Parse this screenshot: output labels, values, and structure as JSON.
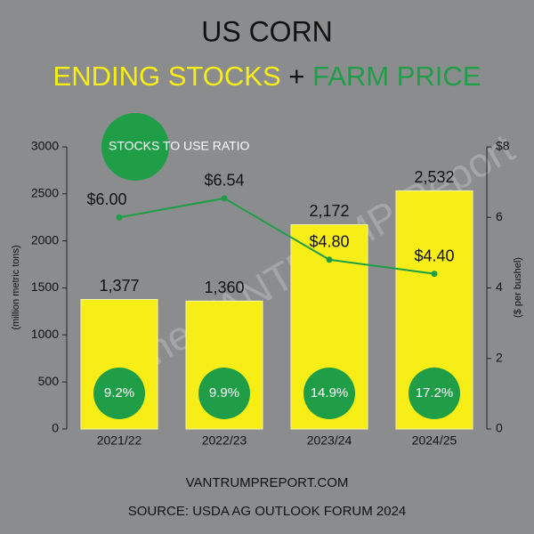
{
  "chart_data": {
    "type": "bar",
    "title": "US CORN",
    "subtitle_separator": "+",
    "categories": [
      "2021/22",
      "2022/23",
      "2023/24",
      "2024/25"
    ],
    "series": [
      {
        "name": "ENDING STOCKS",
        "type": "bar",
        "color": "#f6ee16",
        "values": [
          1377,
          1360,
          2172,
          2532
        ],
        "value_labels": [
          "1,377",
          "1,360",
          "2,172",
          "2,532"
        ]
      },
      {
        "name": "FARM PRICE",
        "type": "line",
        "axis": "y2",
        "color": "#1f9e47",
        "values": [
          6.0,
          6.54,
          4.8,
          4.4
        ],
        "value_labels": [
          "$6.00",
          "$6.54",
          "$4.80",
          "$4.40"
        ]
      },
      {
        "name": "STOCKS TO USE RATIO",
        "type": "badge",
        "color": "#1f9e47",
        "values": [
          9.2,
          9.9,
          14.9,
          17.2
        ],
        "value_labels": [
          "9.2%",
          "9.9%",
          "14.9%",
          "17.2%"
        ]
      }
    ],
    "ylabel": "(million metric tons)",
    "y2label": "($ per bushel)",
    "ylim": [
      0,
      3000
    ],
    "yticks": [
      0,
      500,
      1000,
      1500,
      2000,
      2500,
      3000
    ],
    "y2lim": [
      0,
      8
    ],
    "y2ticks": [
      0,
      2,
      4,
      6,
      {
        "value": 8,
        "label": "$8"
      }
    ],
    "watermark": "The VANTRUMP Report",
    "website": "VANTRUMPREPORT.COM",
    "source": "SOURCE: USDA AG OUTLOOK FORUM 2024"
  }
}
